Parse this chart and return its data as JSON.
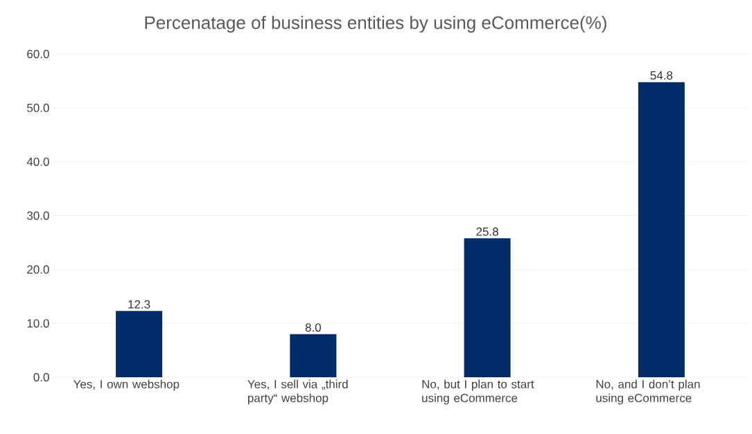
{
  "chart_data": {
    "type": "bar",
    "title": "Percenatage of business entities by using eCommerce(%)",
    "categories": [
      "Yes, I own webshop",
      "Yes, I sell via „third party“ webshop",
      "No, but I plan to start using eCommerce",
      "No, and I don’t plan using eCommerce"
    ],
    "values": [
      12.3,
      8.0,
      25.8,
      54.8
    ],
    "value_labels": [
      "12.3",
      "8.0",
      "25.8",
      "54.8"
    ],
    "color": "#002d6a",
    "ylim": [
      0,
      60
    ],
    "yticks": [
      {
        "value": 0,
        "label": "0.0"
      },
      {
        "value": 10,
        "label": "10.0"
      },
      {
        "value": 20,
        "label": "20.0"
      },
      {
        "value": 30,
        "label": "30.0"
      },
      {
        "value": 40,
        "label": "40.0"
      },
      {
        "value": 50,
        "label": "50.0"
      },
      {
        "value": 60,
        "label": "60.0"
      }
    ],
    "grid": "y"
  }
}
